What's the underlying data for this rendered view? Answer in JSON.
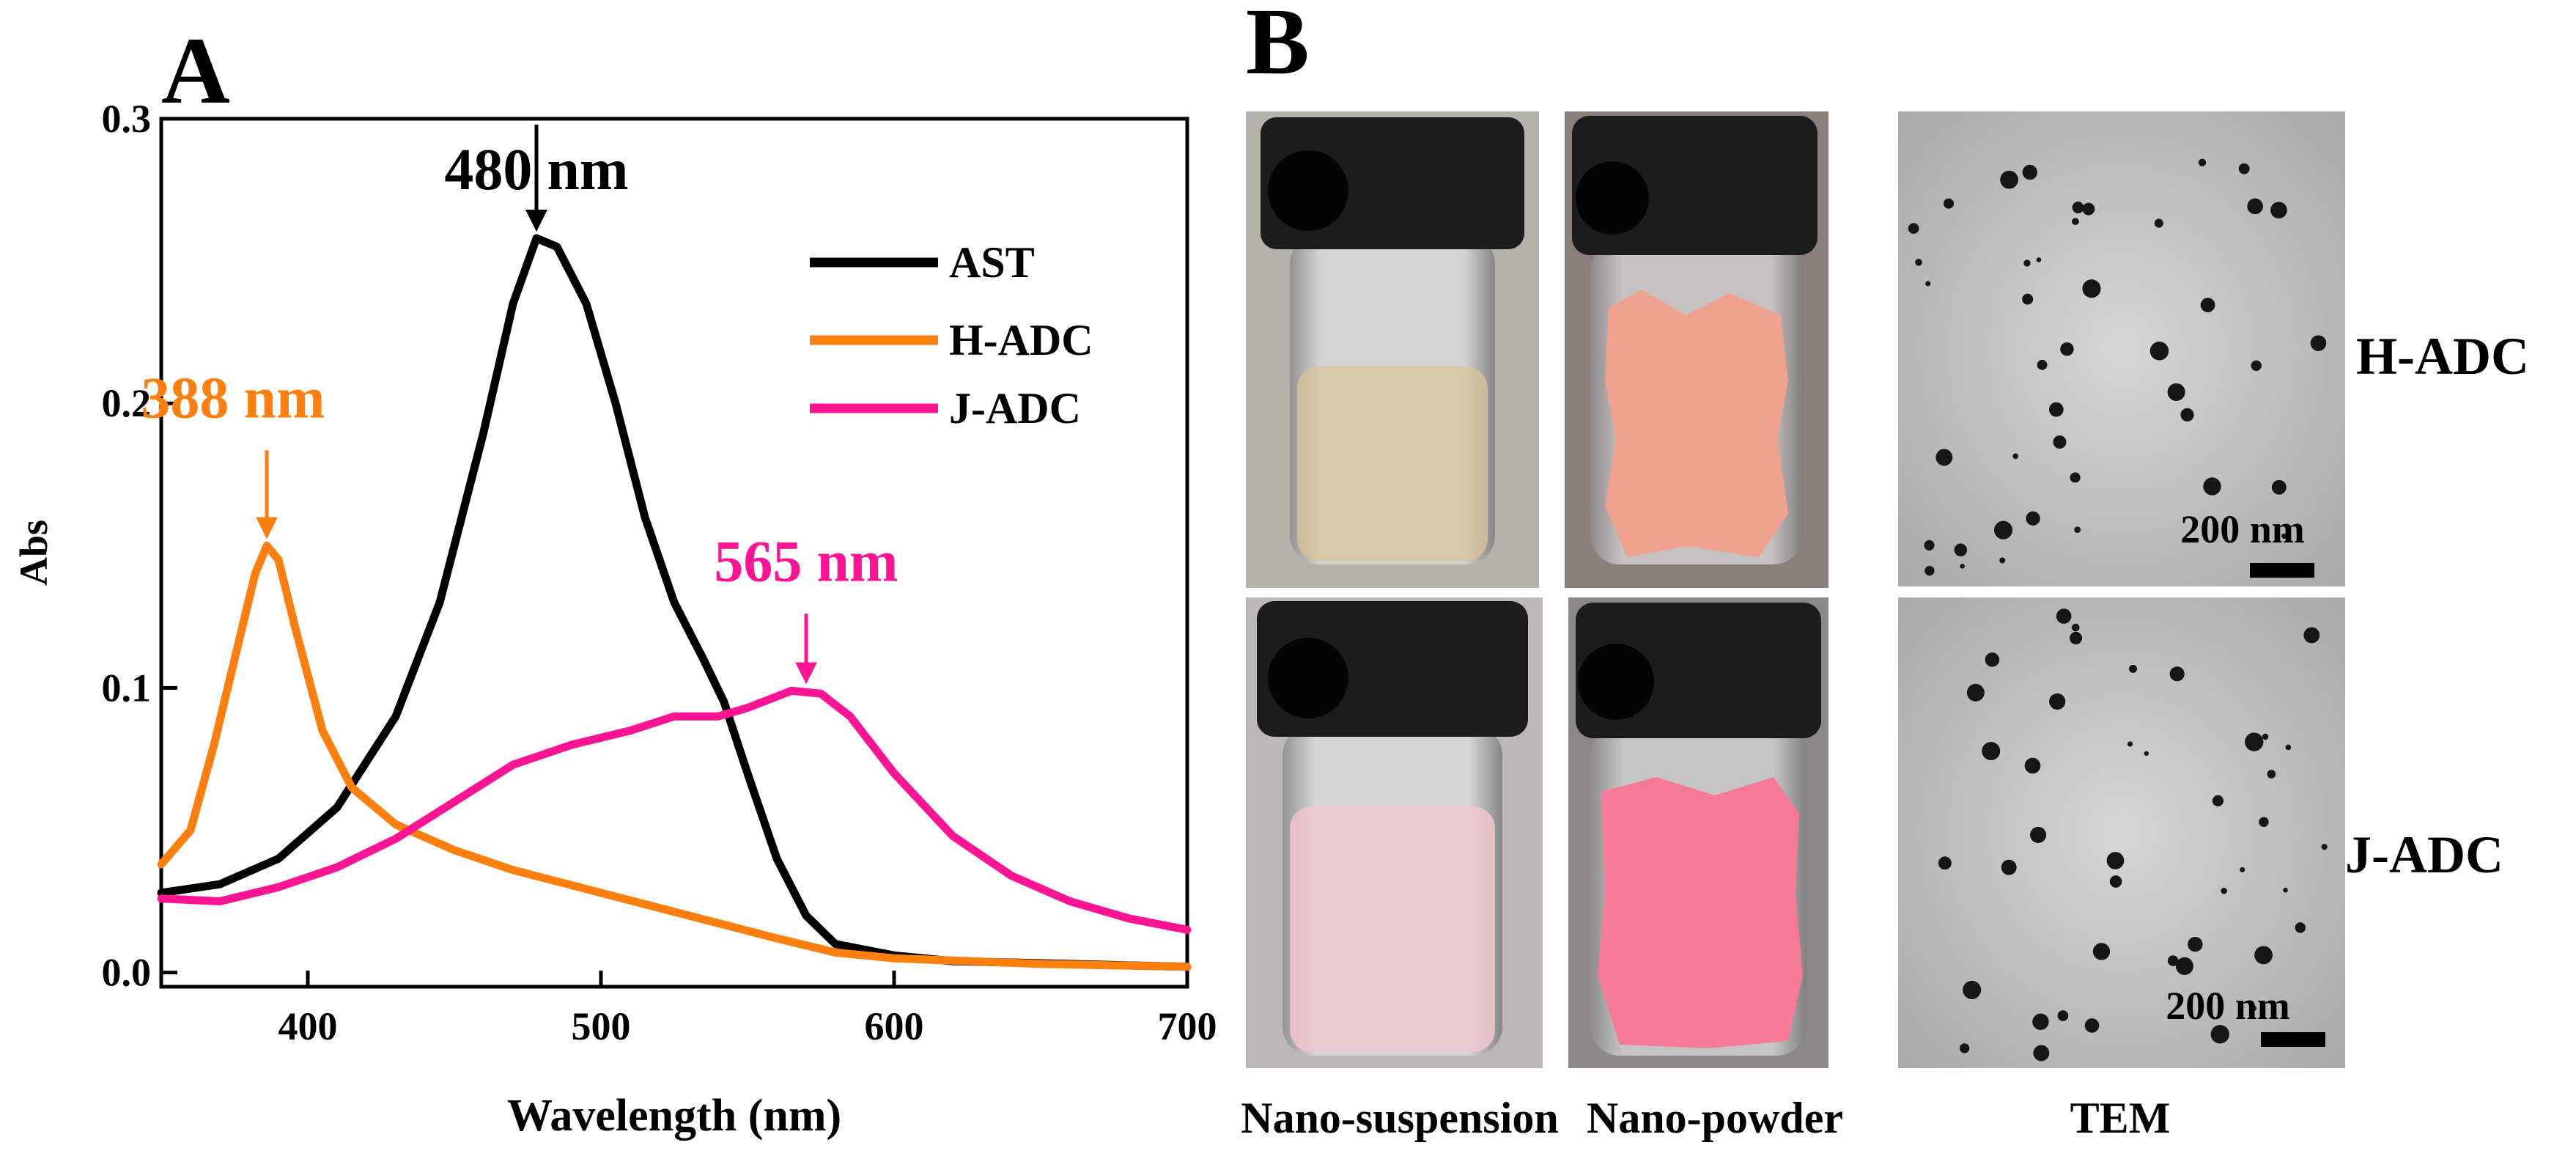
{
  "panels": {
    "a_label": "A",
    "b_label": "B"
  },
  "chart_data": {
    "type": "line",
    "title": "",
    "xlabel": "Wavelength (nm)",
    "ylabel": "Abs",
    "xlim": [
      350,
      700
    ],
    "ylim": [
      -0.005,
      0.3
    ],
    "x_ticks": [
      400,
      500,
      600,
      700
    ],
    "y_ticks": [
      0.0,
      0.1,
      0.2,
      0.3
    ],
    "x_tick_labels": [
      "400",
      "500",
      "600",
      "700"
    ],
    "y_tick_labels": [
      "0.0",
      "0.1",
      "0.2",
      "0.3"
    ],
    "grid": false,
    "legend_position": "top-right",
    "series": [
      {
        "name": "AST",
        "color": "#000000",
        "points": [
          [
            350,
            0.028
          ],
          [
            370,
            0.031
          ],
          [
            390,
            0.04
          ],
          [
            410,
            0.058
          ],
          [
            430,
            0.09
          ],
          [
            445,
            0.13
          ],
          [
            460,
            0.19
          ],
          [
            470,
            0.235
          ],
          [
            478,
            0.258
          ],
          [
            485,
            0.255
          ],
          [
            495,
            0.235
          ],
          [
            505,
            0.2
          ],
          [
            515,
            0.16
          ],
          [
            525,
            0.13
          ],
          [
            535,
            0.11
          ],
          [
            542,
            0.095
          ],
          [
            550,
            0.07
          ],
          [
            560,
            0.04
          ],
          [
            570,
            0.02
          ],
          [
            580,
            0.01
          ],
          [
            600,
            0.006
          ],
          [
            620,
            0.004
          ],
          [
            660,
            0.003
          ],
          [
            700,
            0.002
          ]
        ]
      },
      {
        "name": "H-ADC",
        "color": "#ff7f0e",
        "points": [
          [
            350,
            0.038
          ],
          [
            360,
            0.05
          ],
          [
            368,
            0.08
          ],
          [
            375,
            0.11
          ],
          [
            382,
            0.14
          ],
          [
            386,
            0.15
          ],
          [
            390,
            0.145
          ],
          [
            396,
            0.12
          ],
          [
            405,
            0.085
          ],
          [
            415,
            0.065
          ],
          [
            430,
            0.052
          ],
          [
            450,
            0.043
          ],
          [
            470,
            0.036
          ],
          [
            500,
            0.028
          ],
          [
            530,
            0.02
          ],
          [
            560,
            0.012
          ],
          [
            580,
            0.007
          ],
          [
            600,
            0.005
          ],
          [
            650,
            0.003
          ],
          [
            700,
            0.002
          ]
        ]
      },
      {
        "name": "J-ADC",
        "color": "#ff1493",
        "points": [
          [
            350,
            0.026
          ],
          [
            370,
            0.025
          ],
          [
            390,
            0.03
          ],
          [
            410,
            0.037
          ],
          [
            430,
            0.047
          ],
          [
            450,
            0.06
          ],
          [
            470,
            0.073
          ],
          [
            490,
            0.08
          ],
          [
            510,
            0.085
          ],
          [
            525,
            0.09
          ],
          [
            540,
            0.09
          ],
          [
            550,
            0.093
          ],
          [
            565,
            0.099
          ],
          [
            575,
            0.098
          ],
          [
            585,
            0.09
          ],
          [
            600,
            0.07
          ],
          [
            620,
            0.048
          ],
          [
            640,
            0.034
          ],
          [
            660,
            0.025
          ],
          [
            680,
            0.019
          ],
          [
            700,
            0.015
          ]
        ]
      }
    ],
    "annotations": [
      {
        "text": "480 nm",
        "x": 478,
        "y": 0.258,
        "color": "#000000"
      },
      {
        "text": "388 nm",
        "x": 386,
        "y": 0.15,
        "color": "#ff7f0e"
      },
      {
        "text": "565 nm",
        "x": 570,
        "y": 0.099,
        "color": "#ff1493"
      }
    ]
  },
  "panel_b": {
    "row_labels": [
      "H-ADC",
      "J-ADC"
    ],
    "column_labels": [
      "Nano-suspension",
      "Nano-powder",
      "TEM"
    ],
    "scale_bar_labels": [
      "200 nm",
      "200 nm"
    ],
    "photo_colors": {
      "cap": "#1c1c1c",
      "liquid_yellow": "#d8c49a",
      "liquid_pink": "#f2c6cf",
      "powder_salmon": "#f1a28f",
      "powder_pink": "#f57a96",
      "tem_bg": "#c8c8c8"
    }
  }
}
